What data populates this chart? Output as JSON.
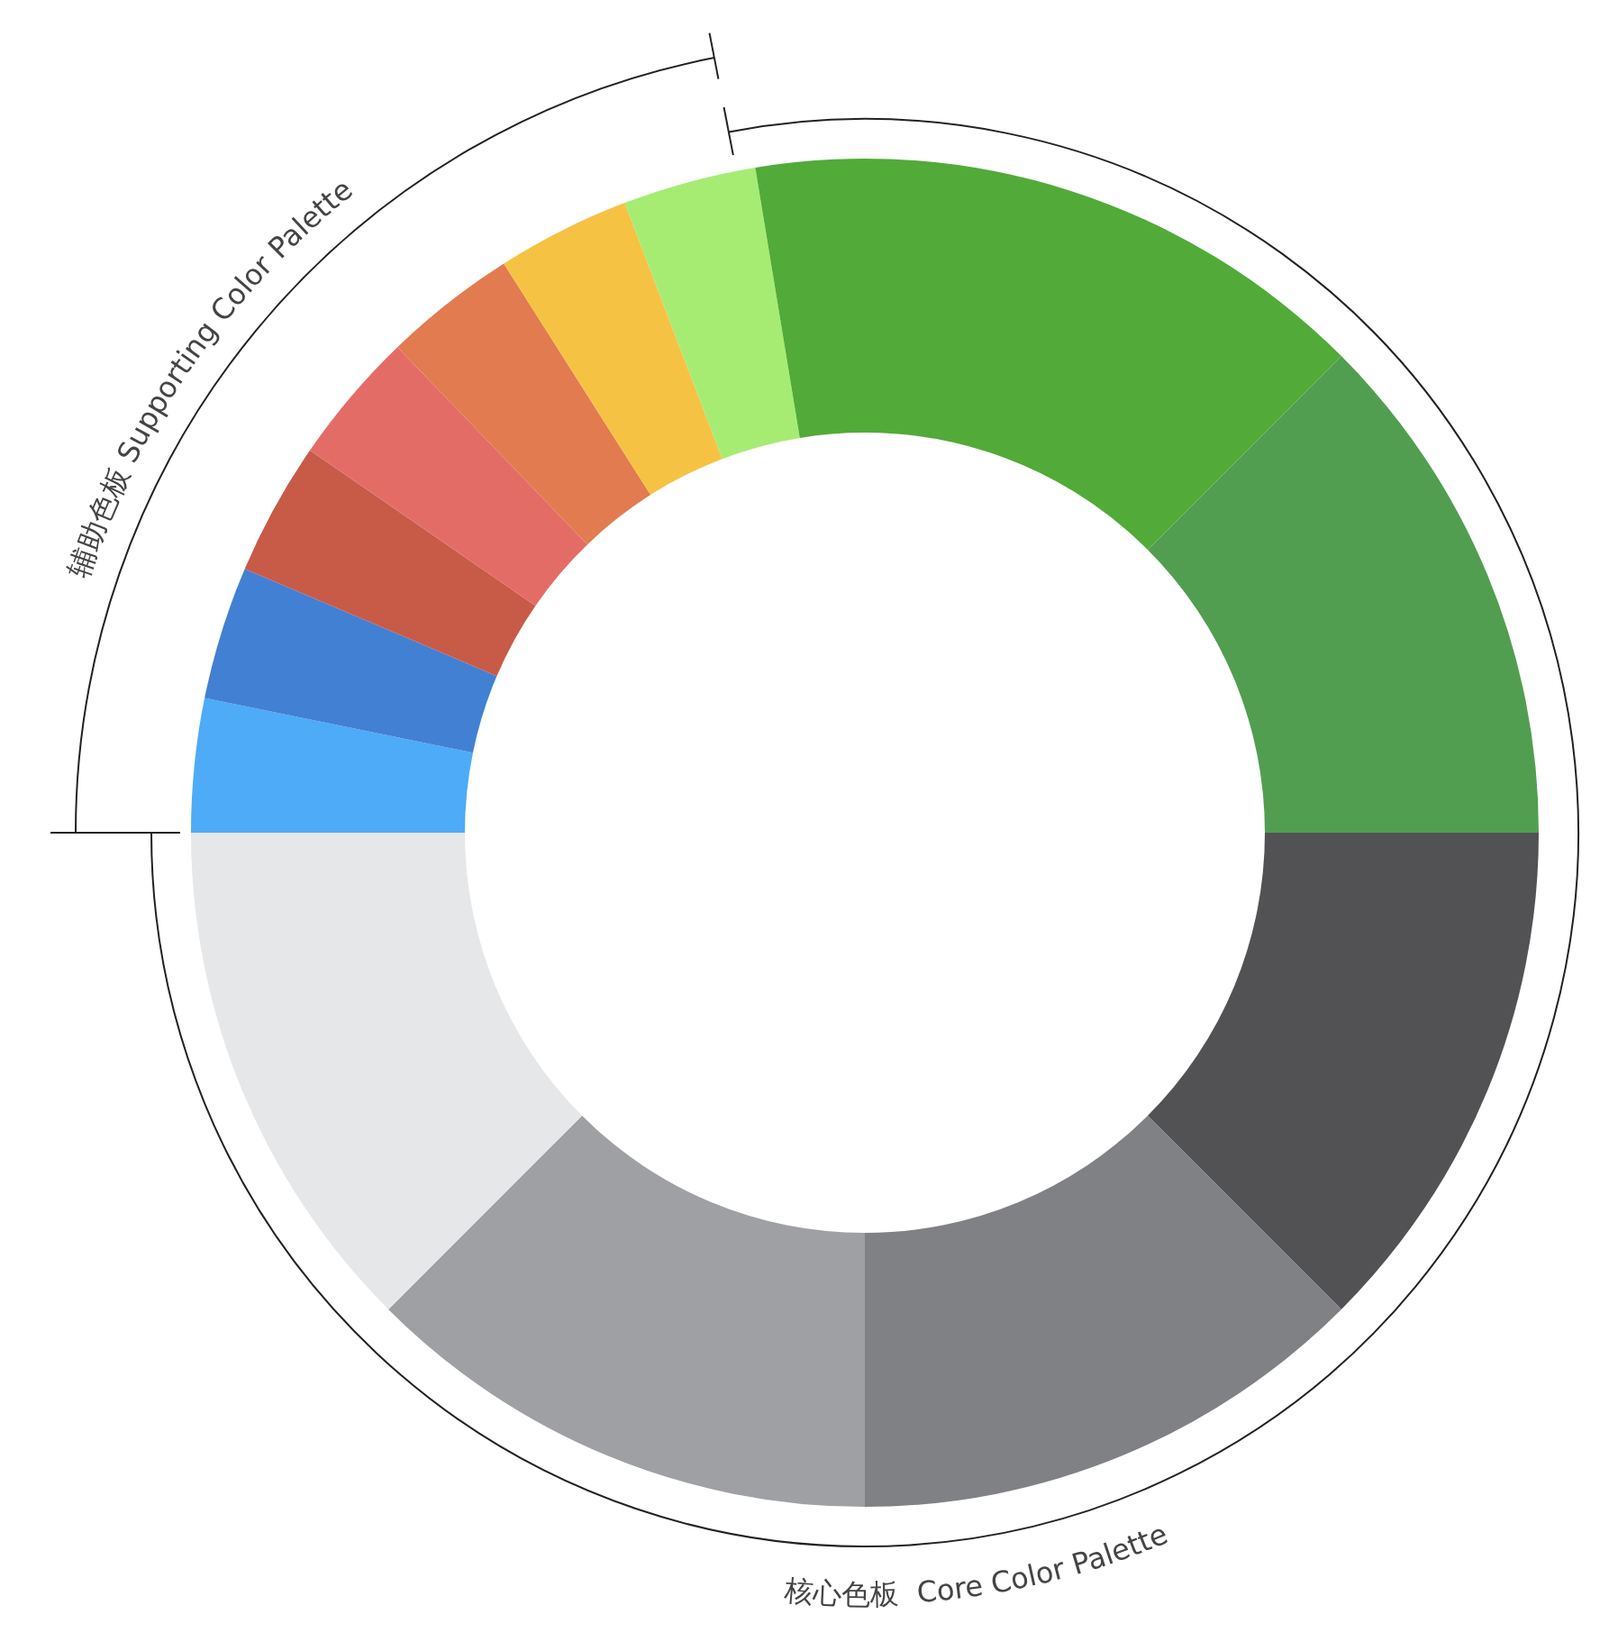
{
  "chart_data": {
    "type": "donut",
    "categories": [
      null,
      null,
      null,
      null,
      null,
      null,
      null,
      null,
      null,
      null,
      null,
      null,
      null
    ],
    "values": [
      12.5,
      12.5,
      12.5,
      12.5,
      3.2,
      3.2,
      3.2,
      3.2,
      3.2,
      3.2,
      3.2,
      15.1,
      12.5
    ],
    "colors": [
      "#525254",
      "#808184",
      "#9fa0a4",
      "#e6e7e9",
      "#4dabf7",
      "#4280d3",
      "#c85a48",
      "#e46c67",
      "#e27b4f",
      "#f6c244",
      "#a6ec73",
      "#52aa38",
      "#529e50"
    ],
    "annotations": [
      "辅助色板 Supporting Color Palette",
      "核心色板  Core Color Palette"
    ]
  }
}
